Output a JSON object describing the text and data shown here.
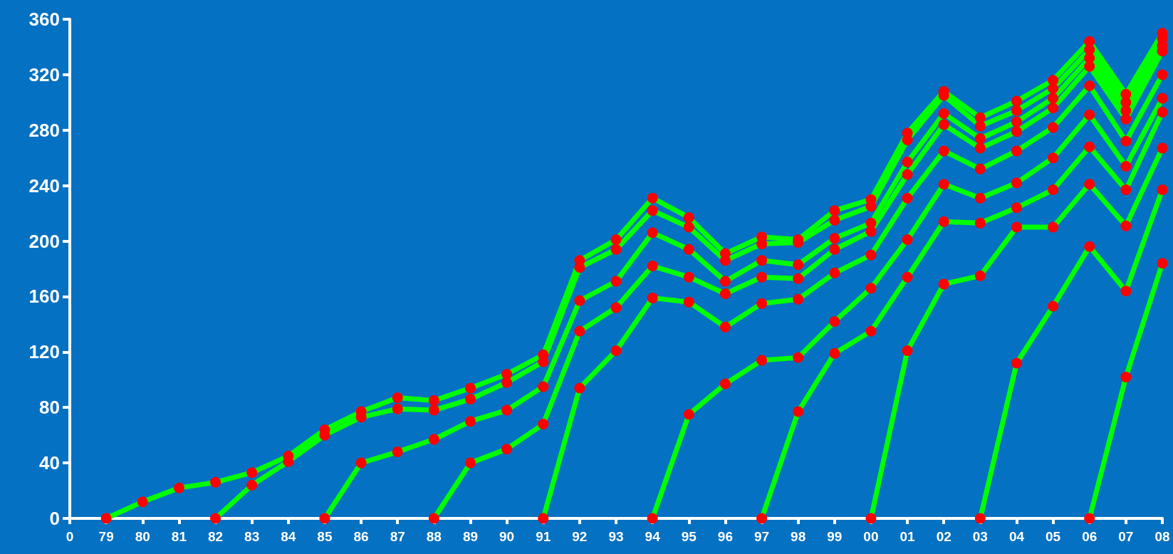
{
  "chart_data": {
    "type": "line",
    "categories": [
      "0",
      "79",
      "80",
      "81",
      "82",
      "83",
      "84",
      "85",
      "86",
      "87",
      "88",
      "89",
      "90",
      "91",
      "92",
      "93",
      "94",
      "95",
      "96",
      "97",
      "98",
      "99",
      "00",
      "01",
      "02",
      "03",
      "04",
      "05",
      "06",
      "07",
      "08"
    ],
    "series": [
      {
        "color": "#00ff00",
        "values": [
          null,
          0,
          12,
          22,
          26,
          33,
          45,
          64,
          77,
          87,
          85,
          94,
          104,
          118,
          186,
          201,
          231,
          217,
          191,
          203,
          201,
          222,
          230,
          278,
          308,
          289,
          301,
          316,
          344,
          306,
          350
        ]
      },
      {
        "color": "#00ff00",
        "values": [
          null,
          null,
          null,
          null,
          0,
          24,
          41,
          60,
          73,
          79,
          78,
          86,
          98,
          113,
          181,
          194,
          222,
          210,
          186,
          198,
          199,
          215,
          225,
          273,
          305,
          283,
          294,
          310,
          338,
          300,
          346
        ]
      },
      {
        "color": "#00ff00",
        "values": [
          null,
          null,
          null,
          null,
          null,
          null,
          null,
          0,
          40,
          48,
          57,
          70,
          78,
          95,
          157,
          171,
          206,
          194,
          171,
          186,
          183,
          202,
          213,
          257,
          292,
          274,
          286,
          303,
          332,
          294,
          341
        ]
      },
      {
        "color": "#00ff00",
        "values": [
          null,
          null,
          null,
          null,
          null,
          null,
          null,
          null,
          null,
          null,
          0,
          40,
          50,
          68,
          135,
          152,
          182,
          174,
          162,
          174,
          173,
          194,
          207,
          248,
          284,
          267,
          279,
          296,
          326,
          288,
          337
        ]
      },
      {
        "color": "#00ff00",
        "values": [
          null,
          null,
          null,
          null,
          null,
          null,
          null,
          null,
          null,
          null,
          null,
          null,
          null,
          0,
          94,
          121,
          159,
          156,
          138,
          155,
          158,
          177,
          190,
          231,
          265,
          252,
          265,
          282,
          312,
          272,
          320
        ]
      },
      {
        "color": "#00ff00",
        "values": [
          null,
          null,
          null,
          null,
          null,
          null,
          null,
          null,
          null,
          null,
          null,
          null,
          null,
          null,
          null,
          null,
          0,
          75,
          97,
          114,
          116,
          142,
          166,
          201,
          241,
          231,
          242,
          260,
          291,
          254,
          303
        ]
      },
      {
        "color": "#00ff00",
        "values": [
          null,
          null,
          null,
          null,
          null,
          null,
          null,
          null,
          null,
          null,
          null,
          null,
          null,
          null,
          null,
          null,
          null,
          null,
          null,
          0,
          77,
          119,
          135,
          174,
          214,
          213,
          224,
          237,
          268,
          237,
          293
        ]
      },
      {
        "color": "#00ff00",
        "values": [
          null,
          null,
          null,
          null,
          null,
          null,
          null,
          null,
          null,
          null,
          null,
          null,
          null,
          null,
          null,
          null,
          null,
          null,
          null,
          null,
          null,
          null,
          0,
          121,
          169,
          175,
          210,
          210,
          241,
          211,
          267
        ]
      },
      {
        "color": "#00ff00",
        "values": [
          null,
          null,
          null,
          null,
          null,
          null,
          null,
          null,
          null,
          null,
          null,
          null,
          null,
          null,
          null,
          null,
          null,
          null,
          null,
          null,
          null,
          null,
          null,
          null,
          null,
          0,
          112,
          153,
          196,
          164,
          237
        ]
      },
      {
        "color": "#00ff00",
        "values": [
          null,
          null,
          null,
          null,
          null,
          null,
          null,
          null,
          null,
          null,
          null,
          null,
          null,
          null,
          null,
          null,
          null,
          null,
          null,
          null,
          null,
          null,
          null,
          null,
          null,
          null,
          null,
          null,
          0,
          102,
          184
        ]
      }
    ],
    "ylim": [
      0,
      360
    ],
    "yticks": [
      0,
      40,
      80,
      120,
      160,
      200,
      240,
      280,
      320,
      360
    ],
    "grid": false,
    "marker": "circle",
    "line_style": "solid"
  }
}
